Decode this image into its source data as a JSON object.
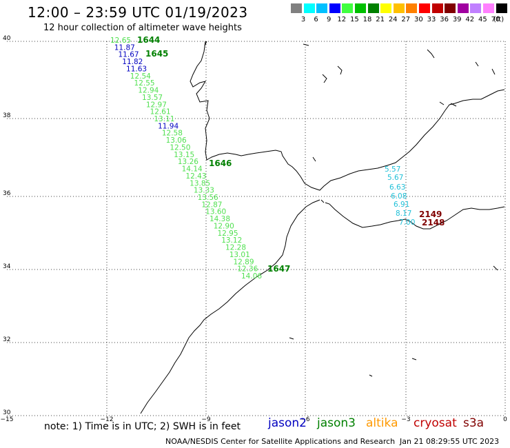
{
  "header": {
    "title": "12:00 – 23:59 UTC 01/19/2023",
    "subtitle": "12 hour collection of altimeter wave heights"
  },
  "colorbar": {
    "unit": "(ft)",
    "colors": [
      "#808080",
      "#00ffff",
      "#00c0ff",
      "#0000ff",
      "#40ff40",
      "#00c000",
      "#008000",
      "#ffff00",
      "#ffc000",
      "#ff8000",
      "#ff0000",
      "#c00000",
      "#800000",
      "#a000a0",
      "#c080ff",
      "#ff80ff",
      "#000000"
    ],
    "labels": [
      "3",
      "6",
      "9",
      "12",
      "15",
      "18",
      "21",
      "24",
      "27",
      "30",
      "33",
      "36",
      "39",
      "42",
      "45",
      "70"
    ]
  },
  "axes": {
    "x_ticks": [
      "−15",
      "−12",
      "−9",
      "−6",
      "−3",
      "0"
    ],
    "y_ticks": [
      "40",
      "38",
      "36",
      "34",
      "32",
      "30"
    ]
  },
  "passes": [
    {
      "label": "1644",
      "color": "#008000"
    },
    {
      "label": "1645",
      "color": "#008000"
    },
    {
      "label": "1646",
      "color": "#008000"
    },
    {
      "label": "1647",
      "color": "#008000"
    },
    {
      "label": "2149",
      "color": "#800000"
    },
    {
      "label": "2148",
      "color": "#800000"
    }
  ],
  "track_main": [
    {
      "v": "12.65",
      "c": "#50e050"
    },
    {
      "v": "11.87",
      "c": "#0000c0"
    },
    {
      "v": "11.67",
      "c": "#0000c0"
    },
    {
      "v": "11.82",
      "c": "#0000c0"
    },
    {
      "v": "11.63",
      "c": "#0000c0"
    },
    {
      "v": "12.54",
      "c": "#50e050"
    },
    {
      "v": "12.55",
      "c": "#50e050"
    },
    {
      "v": "12.94",
      "c": "#50e050"
    },
    {
      "v": "13.57",
      "c": "#50e050"
    },
    {
      "v": "12.97",
      "c": "#50e050"
    },
    {
      "v": "12.61",
      "c": "#50e050"
    },
    {
      "v": "13.11",
      "c": "#50e050"
    },
    {
      "v": "11.94",
      "c": "#0000c0"
    },
    {
      "v": "12.58",
      "c": "#50e050"
    },
    {
      "v": "13.06",
      "c": "#50e050"
    },
    {
      "v": "12.50",
      "c": "#50e050"
    },
    {
      "v": "13.15",
      "c": "#50e050"
    },
    {
      "v": "13.26",
      "c": "#50e050"
    },
    {
      "v": "14.14",
      "c": "#50e050"
    },
    {
      "v": "12.43",
      "c": "#50e050"
    },
    {
      "v": "13.85",
      "c": "#50e050"
    },
    {
      "v": "13.33",
      "c": "#50e050"
    },
    {
      "v": "13.56",
      "c": "#50e050"
    },
    {
      "v": "12.87",
      "c": "#50e050"
    },
    {
      "v": "13.60",
      "c": "#50e050"
    },
    {
      "v": "14.38",
      "c": "#50e050"
    },
    {
      "v": "12.90",
      "c": "#50e050"
    },
    {
      "v": "12.95",
      "c": "#50e050"
    },
    {
      "v": "13.12",
      "c": "#50e050"
    },
    {
      "v": "12.28",
      "c": "#50e050"
    },
    {
      "v": "13.01",
      "c": "#50e050"
    },
    {
      "v": "12.89",
      "c": "#50e050"
    },
    {
      "v": "12.36",
      "c": "#50e050"
    },
    {
      "v": "14.06",
      "c": "#50e050"
    }
  ],
  "track_med": [
    {
      "v": "5.57"
    },
    {
      "v": "5.67"
    },
    {
      "v": "6.63"
    },
    {
      "v": "6.08"
    },
    {
      "v": "6.91"
    },
    {
      "v": "8.17"
    },
    {
      "v": "7.00"
    }
  ],
  "footer": {
    "note": "note:  1) Time is in UTC;  2) SWH is in feet",
    "satellites": [
      {
        "name": "jason2",
        "color": "#0000c0"
      },
      {
        "name": "jason3",
        "color": "#008000"
      },
      {
        "name": "altika",
        "color": "#ff9900"
      },
      {
        "name": "cryosat",
        "color": "#c00000"
      },
      {
        "name": "s3a",
        "color": "#800000"
      }
    ],
    "credit": "NOAA/NESDIS Center for Satellite Applications and Research",
    "date": "Jan 21 08:29:55 UTC 2023"
  }
}
